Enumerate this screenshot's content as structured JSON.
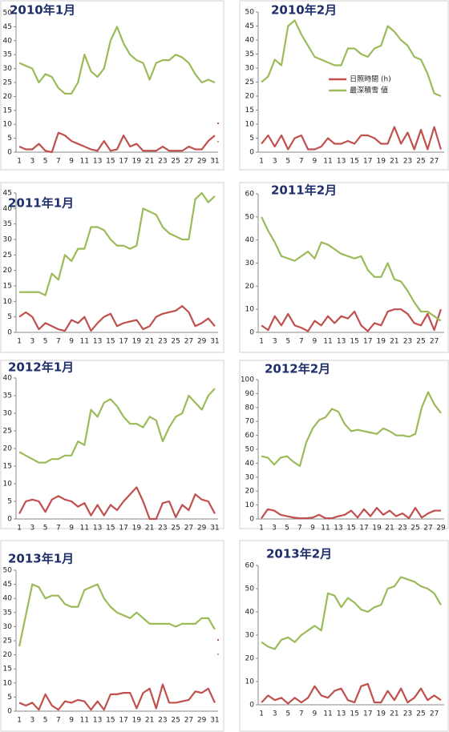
{
  "chart_data": [
    {
      "type": "line",
      "title": "2010年1月",
      "categories": [
        "1",
        null,
        "3",
        null,
        "5",
        null,
        "7",
        null,
        "9",
        null,
        "11",
        null,
        "13",
        null,
        "15",
        null,
        "17",
        null,
        "19",
        null,
        "21",
        null,
        "23",
        null,
        "25",
        null,
        "27",
        null,
        "29",
        null,
        "31"
      ],
      "ylim": [
        0,
        50
      ],
      "yticks": [
        0,
        5,
        10,
        15,
        20,
        25,
        30,
        35,
        40,
        45,
        50
      ],
      "series": [
        {
          "color": "#c0504d",
          "values": [
            2,
            1,
            1,
            3,
            0.5,
            0,
            7,
            6,
            4,
            3,
            2,
            1,
            0.5,
            4,
            0.5,
            1,
            6,
            2,
            3,
            0.5,
            0.5,
            0.5,
            2,
            0.5,
            0.5,
            0.5,
            2,
            1,
            1,
            4,
            6
          ]
        },
        {
          "color": "#9bbb59",
          "values": [
            32,
            31,
            30,
            25,
            28,
            27,
            23,
            21,
            21,
            25,
            35,
            29,
            27,
            30,
            40,
            45,
            39,
            35,
            33,
            32,
            26,
            32,
            33,
            33,
            35,
            34,
            32,
            28,
            25,
            26,
            25
          ]
        }
      ]
    },
    {
      "type": "line",
      "title": "2010年2月",
      "categories": [
        "1",
        null,
        "3",
        null,
        "5",
        null,
        "7",
        null,
        "9",
        null,
        "11",
        null,
        "13",
        null,
        "15",
        null,
        "17",
        null,
        "19",
        null,
        "21",
        null,
        "23",
        null,
        "25",
        null,
        "27",
        null
      ],
      "ylim": [
        0,
        50
      ],
      "yticks": [
        0,
        5,
        10,
        15,
        20,
        25,
        30,
        35,
        40,
        45,
        50
      ],
      "legend": "center",
      "series": [
        {
          "name": "日照時間 (h)",
          "color": "#c0504d",
          "values": [
            3,
            6,
            2,
            6,
            1,
            5,
            6,
            1,
            1,
            2,
            5,
            3,
            3,
            4,
            3,
            6,
            6,
            5,
            3,
            3,
            9,
            3,
            7,
            1,
            8,
            1,
            9,
            1
          ]
        },
        {
          "name": "最深積雪 値",
          "color": "#9bbb59",
          "values": [
            25,
            27,
            33,
            31,
            45,
            47,
            42,
            38,
            34,
            33,
            32,
            31,
            31,
            37,
            37,
            35,
            34,
            37,
            38,
            45,
            43,
            40,
            38,
            34,
            33,
            28,
            21,
            20
          ]
        }
      ]
    },
    {
      "type": "line",
      "title": "2011年1月",
      "categories": [
        "1",
        null,
        "3",
        null,
        "5",
        null,
        "7",
        null,
        "9",
        null,
        "11",
        null,
        "13",
        null,
        "15",
        null,
        "17",
        null,
        "19",
        null,
        "21",
        null,
        "23",
        null,
        "25",
        null,
        "27",
        null,
        "29",
        null,
        "31"
      ],
      "ylim": [
        0,
        45
      ],
      "yticks": [
        0,
        5,
        10,
        15,
        20,
        25,
        30,
        35,
        40,
        45
      ],
      "series": [
        {
          "color": "#c0504d",
          "values": [
            5,
            6.5,
            5,
            1,
            3,
            2,
            1,
            0.5,
            4,
            3,
            5,
            0.5,
            3,
            5,
            6,
            2,
            3,
            3.5,
            4,
            1,
            2,
            5,
            6,
            6.5,
            7,
            8.5,
            6.5,
            2,
            3,
            4.5,
            2
          ]
        },
        {
          "color": "#9bbb59",
          "values": [
            13,
            13,
            13,
            13,
            12,
            19,
            17,
            25,
            23,
            27,
            27,
            34,
            34,
            33,
            30,
            28,
            28,
            27,
            28,
            40,
            39,
            38,
            34,
            32,
            31,
            30,
            30,
            43,
            45,
            42,
            44
          ]
        }
      ]
    },
    {
      "type": "line",
      "title": "2011年2月",
      "categories": [
        "1",
        null,
        "3",
        null,
        "5",
        null,
        "7",
        null,
        "9",
        null,
        "11",
        null,
        "13",
        null,
        "15",
        null,
        "17",
        null,
        "19",
        null,
        "21",
        null,
        "23",
        null,
        "25",
        null,
        "27",
        null
      ],
      "ylim": [
        0,
        60
      ],
      "yticks": [
        0,
        10,
        20,
        30,
        40,
        50,
        60
      ],
      "series": [
        {
          "color": "#c0504d",
          "values": [
            3,
            1,
            7,
            3,
            8,
            3,
            2,
            0.5,
            5,
            3,
            7,
            4,
            7,
            6,
            9,
            3,
            0.5,
            4,
            3,
            9,
            10,
            10,
            8,
            4,
            3,
            8,
            1,
            10
          ]
        },
        {
          "color": "#9bbb59",
          "values": [
            50,
            44,
            39,
            33,
            32,
            31,
            33,
            35,
            32,
            39,
            38,
            36,
            34,
            33,
            32,
            33,
            27,
            24,
            24,
            30,
            23,
            22,
            18,
            13,
            9,
            9,
            7,
            5
          ]
        }
      ]
    },
    {
      "type": "line",
      "title": "2012年1月",
      "categories": [
        "1",
        null,
        "3",
        null,
        "5",
        null,
        "7",
        null,
        "9",
        null,
        "11",
        null,
        "13",
        null,
        "15",
        null,
        "17",
        null,
        "19",
        null,
        "21",
        null,
        "23",
        null,
        "25",
        null,
        "27",
        null,
        "29",
        null,
        "31"
      ],
      "ylim": [
        0,
        40
      ],
      "yticks": [
        0,
        5,
        10,
        15,
        20,
        25,
        30,
        35,
        40
      ],
      "series": [
        {
          "color": "#c0504d",
          "values": [
            1.5,
            5,
            5.5,
            5,
            2,
            5.5,
            6.5,
            5.5,
            5,
            3.5,
            4.5,
            1,
            4,
            1,
            4,
            2.5,
            5,
            7,
            9,
            5,
            0,
            0,
            4.5,
            5,
            0.5,
            4,
            2.5,
            7,
            5.5,
            5,
            1.5
          ]
        },
        {
          "color": "#9bbb59",
          "values": [
            19,
            18,
            17,
            16,
            16,
            17,
            17,
            18,
            18,
            22,
            21,
            31,
            29,
            33,
            34,
            32,
            29,
            27,
            27,
            26,
            29,
            28,
            22,
            26,
            29,
            30,
            35,
            33,
            31,
            35,
            37
          ]
        }
      ]
    },
    {
      "type": "line",
      "title": "2012年2月",
      "categories": [
        "1",
        null,
        "3",
        null,
        "5",
        null,
        "7",
        null,
        "9",
        null,
        "11",
        null,
        "13",
        null,
        "15",
        null,
        "17",
        null,
        "19",
        null,
        "21",
        null,
        "23",
        null,
        "25",
        null,
        "27",
        null,
        "29"
      ],
      "ylim": [
        0,
        100
      ],
      "yticks": [
        0,
        10,
        20,
        30,
        40,
        50,
        60,
        70,
        80,
        90,
        100
      ],
      "series": [
        {
          "color": "#c0504d",
          "values": [
            0.5,
            7,
            6,
            3,
            2,
            1,
            0.5,
            0.5,
            1,
            3,
            0.5,
            0.5,
            2,
            3,
            6,
            1,
            7,
            2,
            8,
            3,
            6,
            2,
            4,
            0.5,
            8,
            1,
            4,
            6,
            6
          ]
        },
        {
          "color": "#9bbb59",
          "values": [
            45,
            44,
            39,
            44,
            45,
            41,
            38,
            55,
            65,
            71,
            73,
            79,
            77,
            68,
            63,
            64,
            63,
            62,
            61,
            65,
            63,
            60,
            60,
            59,
            61,
            80,
            91,
            82,
            76
          ]
        }
      ]
    },
    {
      "type": "line",
      "title": "2013年1月",
      "categories": [
        "1",
        null,
        "3",
        null,
        "5",
        null,
        "7",
        null,
        "9",
        null,
        "11",
        null,
        "13",
        null,
        "15",
        null,
        "17",
        null,
        "19",
        null,
        "21",
        null,
        "23",
        null,
        "25",
        null,
        "27",
        null,
        "29",
        null,
        "31"
      ],
      "ylim": [
        0,
        50
      ],
      "yticks": [
        0,
        5,
        10,
        15,
        20,
        25,
        30,
        35,
        40,
        45,
        50
      ],
      "series": [
        {
          "color": "#c0504d",
          "values": [
            3,
            2,
            3,
            0.5,
            6,
            2,
            0.5,
            3.5,
            3,
            4,
            3.5,
            0.5,
            3.5,
            0.5,
            6,
            6,
            6.5,
            6.5,
            1,
            6.5,
            8,
            1,
            9.5,
            3,
            3,
            3.5,
            4,
            7,
            6.5,
            8,
            3
          ]
        },
        {
          "color": "#9bbb59",
          "values": [
            23,
            34,
            45,
            44,
            40,
            41,
            41,
            38,
            37,
            37,
            43,
            44,
            45,
            40,
            37,
            35,
            34,
            33,
            35,
            33,
            31,
            31,
            31,
            31,
            30,
            31,
            31,
            31,
            33,
            33,
            29
          ]
        }
      ]
    },
    {
      "type": "line",
      "title": "2013年2月",
      "categories": [
        "1",
        null,
        "3",
        null,
        "5",
        null,
        "7",
        null,
        "9",
        null,
        "11",
        null,
        "13",
        null,
        "15",
        null,
        "17",
        null,
        "19",
        null,
        "21",
        null,
        "23",
        null,
        "25",
        null,
        "27",
        null
      ],
      "ylim": [
        0,
        60
      ],
      "yticks": [
        0,
        10,
        20,
        30,
        40,
        50,
        60
      ],
      "series": [
        {
          "color": "#c0504d",
          "values": [
            1,
            4,
            2,
            3,
            0.5,
            3,
            1,
            3,
            8,
            4,
            3,
            6,
            7,
            2,
            1,
            8,
            9,
            1,
            1,
            6,
            2,
            7,
            1,
            3,
            7,
            2,
            4,
            2
          ]
        },
        {
          "color": "#9bbb59",
          "values": [
            27,
            25,
            24,
            28,
            29,
            27,
            30,
            32,
            34,
            32,
            48,
            47,
            42,
            46,
            44,
            41,
            40,
            42,
            43,
            50,
            51,
            55,
            54,
            53,
            51,
            50,
            48,
            43
          ]
        }
      ]
    }
  ]
}
